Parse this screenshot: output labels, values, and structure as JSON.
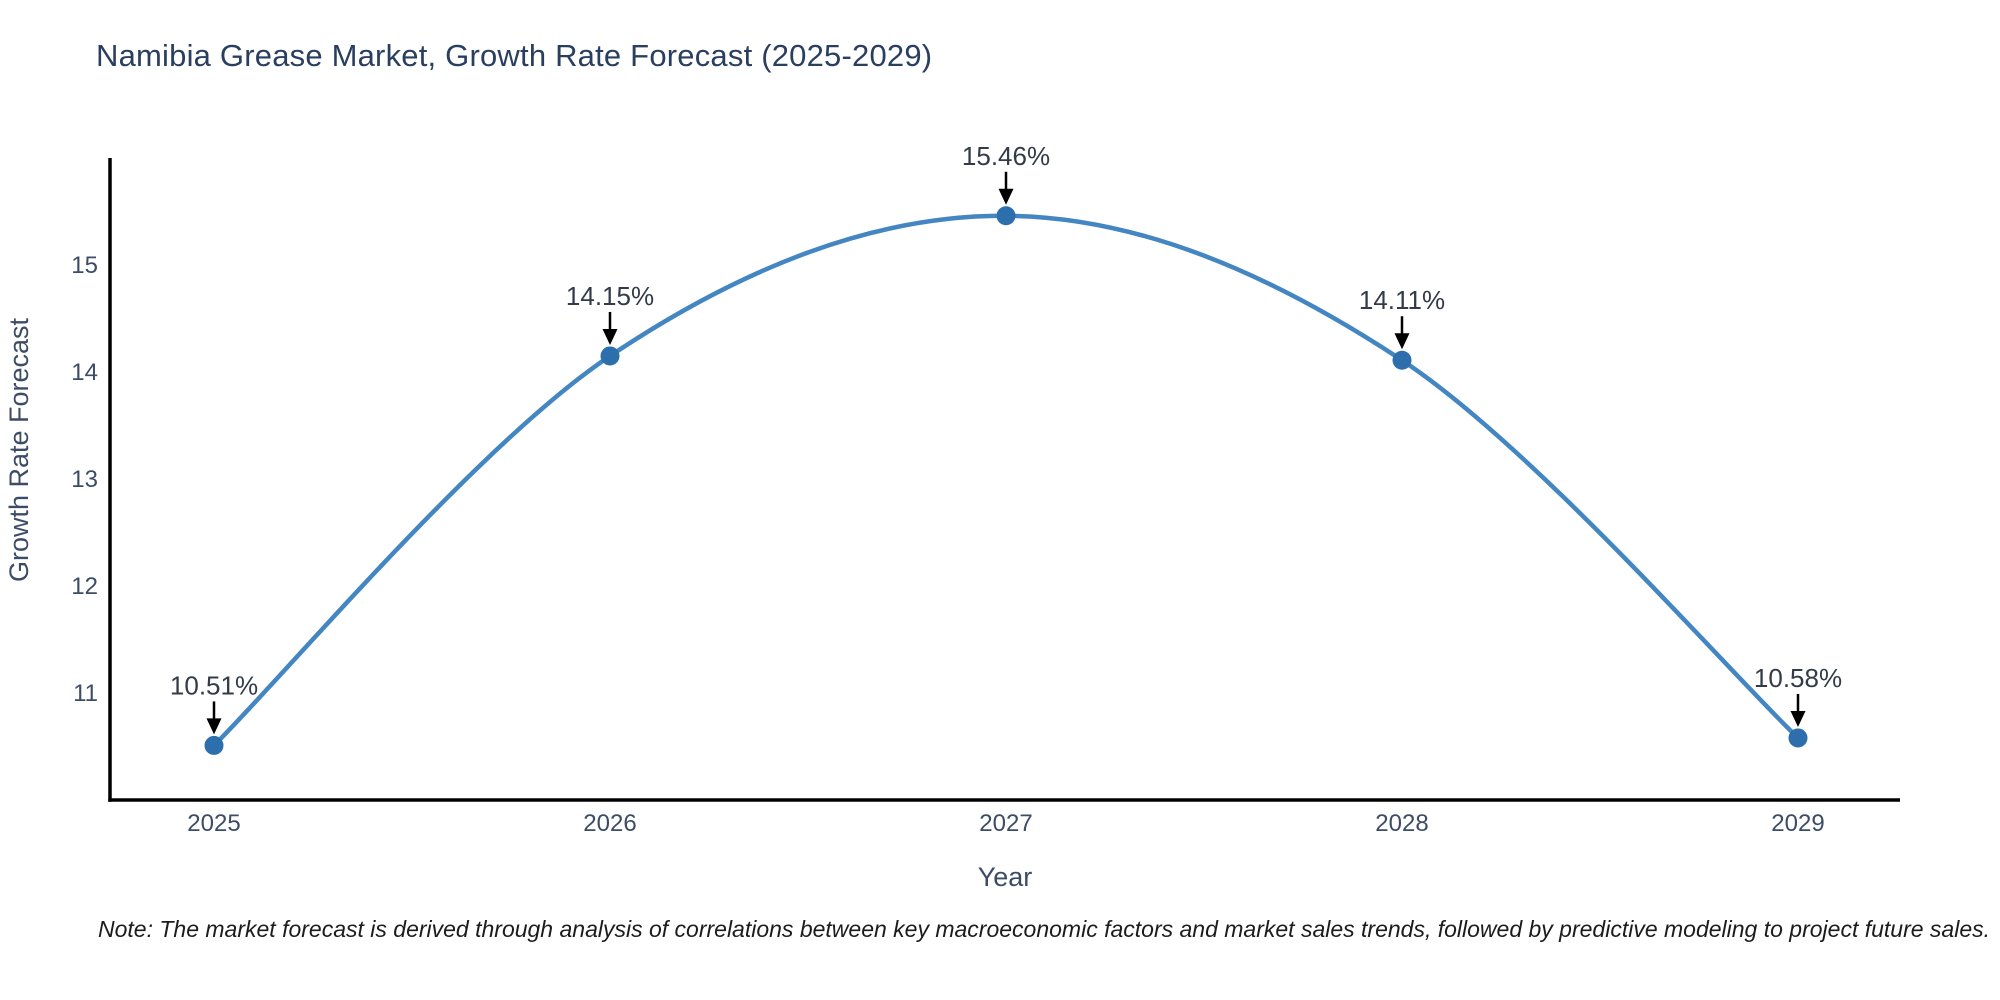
{
  "title": "Namibia Grease Market, Growth Rate Forecast (2025-2029)",
  "note": "Note: The market forecast is derived through analysis of correlations between key macroeconomic factors and market sales trends, followed by predictive modeling to project future sales.",
  "chart_data": {
    "type": "line",
    "title": "Namibia Grease Market, Growth Rate Forecast (2025-2029)",
    "xlabel": "Year",
    "ylabel": "Growth Rate Forecast",
    "categories": [
      "2025",
      "2026",
      "2027",
      "2028",
      "2029"
    ],
    "values": [
      10.51,
      14.15,
      15.46,
      14.11,
      10.58
    ],
    "point_labels": [
      "10.51%",
      "14.15%",
      "15.46%",
      "14.11%",
      "10.58%"
    ],
    "yticks": [
      11,
      12,
      13,
      14,
      15
    ],
    "ylim": [
      10,
      16
    ],
    "grid": false,
    "legend": "none",
    "marker_shape": "circle",
    "line_smooth": true,
    "colors": {
      "line": "#4386c2",
      "marker": "#2d6fad",
      "arrow": "#000000",
      "axis": "#000000",
      "title_text": "#2a3f5f",
      "tick_text": "#3d4c66",
      "axis_label_text": "#3d4c66",
      "annotation_text": "#333b49",
      "note_text": "#1c1c1c"
    }
  }
}
